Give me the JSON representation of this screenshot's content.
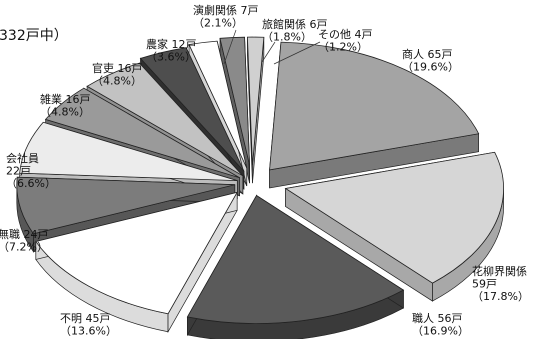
{
  "chart_data": {
    "type": "pie",
    "title": "332戸中）",
    "total": 332,
    "slices": [
      {
        "name": "商人",
        "count_label": "65戸",
        "pct_label": "（19.6%）",
        "value": 19.6,
        "color": "#a4a4a4",
        "side": "#7a7a7a"
      },
      {
        "name": "花柳界関係",
        "count_label": "59戸",
        "pct_label": "（17.8%）",
        "value": 17.8,
        "color": "#d6d6d6",
        "side": "#a8a8a8"
      },
      {
        "name": "職人",
        "count_label": "56戸",
        "pct_label": "（16.9%）",
        "value": 16.9,
        "color": "#5a5a5a",
        "side": "#3a3a3a"
      },
      {
        "name": "不明",
        "count_label": "45戸",
        "pct_label": "（13.6%）",
        "value": 13.6,
        "color": "#ffffff",
        "side": "#dcdcdc"
      },
      {
        "name": "無職",
        "count_label": "24戸",
        "pct_label": "（7.2%）",
        "value": 7.2,
        "color": "#7c7c7c",
        "side": "#575757"
      },
      {
        "name": "会社員",
        "count_label": "22戸",
        "pct_label": "（6.6%）",
        "value": 6.6,
        "color": "#ececec",
        "side": "#bdbdbd"
      },
      {
        "name": "雑業",
        "count_label": "16戸",
        "pct_label": "（4.8%）",
        "value": 4.8,
        "color": "#9a9a9a",
        "side": "#6e6e6e"
      },
      {
        "name": "官吏",
        "count_label": "16戸",
        "pct_label": "（4.8%）",
        "value": 4.8,
        "color": "#c2c2c2",
        "side": "#929292"
      },
      {
        "name": "農家",
        "count_label": "12戸",
        "pct_label": "（3.6%）",
        "value": 3.6,
        "color": "#4e4e4e",
        "side": "#2f2f2f"
      },
      {
        "name": "演劇関係",
        "count_label": "7戸",
        "pct_label": "（2.1%）",
        "value": 2.1,
        "color": "#ffffff",
        "side": "#d4d4d4"
      },
      {
        "name": "旅館関係",
        "count_label": "6戸",
        "pct_label": "（1.8%）",
        "value": 1.8,
        "color": "#8a8a8a",
        "side": "#616161"
      },
      {
        "name": "その他",
        "count_label": "4戸",
        "pct_label": "（1.2%）",
        "value": 1.2,
        "color": "#d0d0d0",
        "side": "#a0a0a0"
      }
    ]
  }
}
